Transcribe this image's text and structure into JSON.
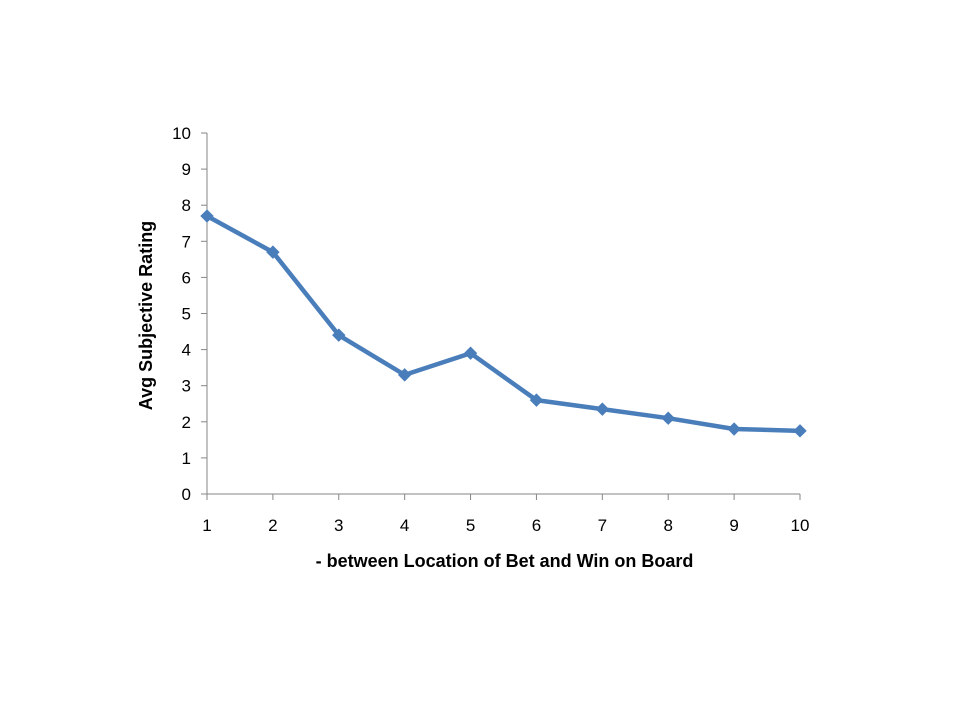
{
  "chart_data": {
    "type": "line",
    "title": "",
    "xlabel": "- between  Location of Bet and Win on Board",
    "ylabel": "Avg  Subjective Rating",
    "categories": [
      "1",
      "2",
      "3",
      "4",
      "5",
      "6",
      "7",
      "8",
      "9",
      "10"
    ],
    "series": [
      {
        "values": [
          7.7,
          6.7,
          4.4,
          3.3,
          3.9,
          2.6,
          2.35,
          2.1,
          1.8,
          1.75
        ]
      }
    ],
    "ylim": [
      0,
      10
    ],
    "yticks": [
      "0",
      "1",
      "2",
      "3",
      "4",
      "5",
      "6",
      "7",
      "8",
      "9",
      "10"
    ],
    "grid": false,
    "legend": "none",
    "colors": {
      "series": "#4a7ebb",
      "axis": "#868686",
      "text": "#000000"
    }
  }
}
